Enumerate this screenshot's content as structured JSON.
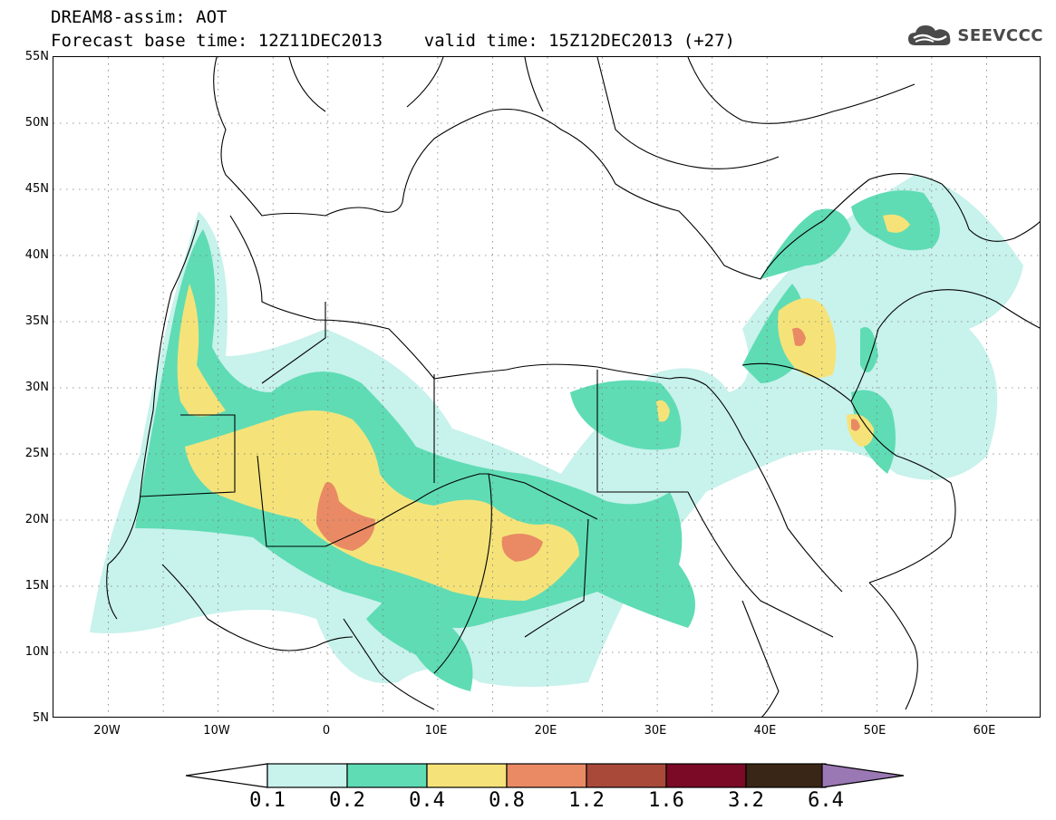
{
  "title": {
    "line1": "DREAM8-assim: AOT",
    "line2": "Forecast base time: 12Z11DEC2013    valid time: 15Z12DEC2013 (+27)"
  },
  "brand": {
    "text": "SEEVCCC",
    "icon": "cloud-logo-icon"
  },
  "map": {
    "lon_range": [
      -25,
      65
    ],
    "lat_range": [
      5,
      55
    ],
    "lat_labels": [
      "55N",
      "50N",
      "45N",
      "40N",
      "35N",
      "30N",
      "25N",
      "20N",
      "15N",
      "10N",
      "5N"
    ],
    "lon_labels": [
      "20W",
      "10W",
      "0",
      "10E",
      "20E",
      "30E",
      "40E",
      "50E",
      "60E"
    ],
    "grid": "dotted"
  },
  "colorbar": {
    "labels": [
      "0.1",
      "0.2",
      "0.4",
      "0.8",
      "1.2",
      "1.6",
      "3.2",
      "6.4"
    ],
    "colors": [
      "#c8f2ec",
      "#5fdcb4",
      "#f5e37a",
      "#e98a64",
      "#a9493a",
      "#7a0a26",
      "#3a2616",
      "#9a78b4"
    ],
    "extend": "both"
  }
}
